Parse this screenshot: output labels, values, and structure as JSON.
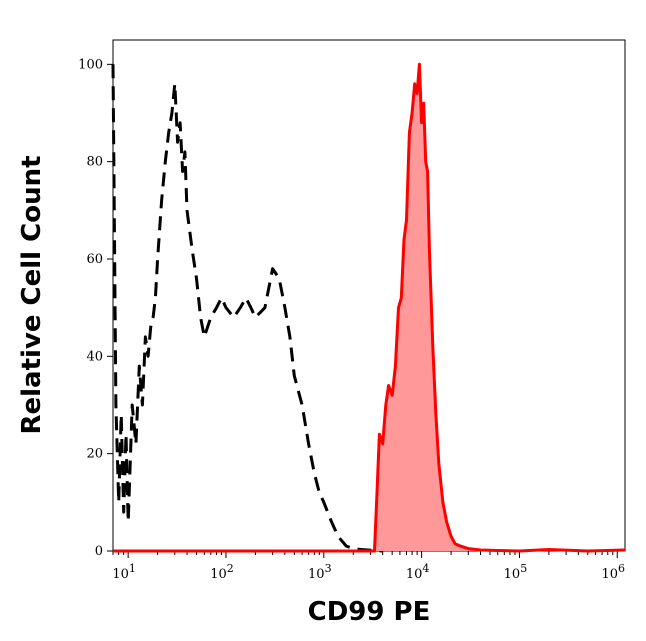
{
  "chart_data": {
    "type": "area",
    "title": "",
    "xlabel": "CD99 PE",
    "ylabel": "Relative Cell Count",
    "x_scale": "log",
    "xlim": [
      7,
      1200000
    ],
    "ylim": [
      0,
      105
    ],
    "x_ticks": [
      {
        "value": 10,
        "base": "10",
        "exp": "1"
      },
      {
        "value": 100,
        "base": "10",
        "exp": "2"
      },
      {
        "value": 1000,
        "base": "10",
        "exp": "3"
      },
      {
        "value": 10000,
        "base": "10",
        "exp": "4"
      },
      {
        "value": 100000,
        "base": "10",
        "exp": "5"
      },
      {
        "value": 1000000,
        "base": "10",
        "exp": "6"
      }
    ],
    "y_ticks": [
      0,
      20,
      40,
      60,
      80,
      100
    ],
    "grid": false,
    "legend": "none",
    "series": [
      {
        "style": "dashed",
        "color": "#000000",
        "fill": "none",
        "x": [
          7,
          7.5,
          8,
          8.5,
          9,
          9.5,
          10,
          11,
          12,
          13,
          14,
          15,
          16,
          17,
          18,
          19,
          20,
          22,
          24,
          26,
          28,
          30,
          32,
          34,
          36,
          38,
          40,
          45,
          50,
          55,
          60,
          70,
          80,
          90,
          100,
          120,
          140,
          160,
          180,
          200,
          250,
          300,
          350,
          400,
          450,
          500,
          600,
          700,
          800,
          900,
          1000,
          1200,
          1400,
          1700,
          2000,
          2400,
          2800,
          3300,
          4000
        ],
        "y": [
          100,
          30,
          10,
          28,
          8,
          24,
          6,
          30,
          22,
          38,
          30,
          44,
          40,
          46,
          48,
          52,
          60,
          72,
          80,
          86,
          90,
          96,
          84,
          88,
          78,
          82,
          70,
          62,
          56,
          48,
          44,
          48,
          50,
          52,
          50,
          48,
          50,
          52,
          50,
          48,
          50,
          58,
          56,
          50,
          44,
          36,
          30,
          22,
          16,
          12,
          10,
          6,
          3,
          1,
          0.5,
          0.3,
          0.2,
          0.1,
          0
        ]
      },
      {
        "style": "solid",
        "color": "#ff0000",
        "fill": "#ff9999",
        "x": [
          7,
          1000,
          2000,
          3000,
          3300,
          3500,
          3700,
          4000,
          4300,
          4600,
          5000,
          5400,
          5800,
          6200,
          6600,
          7000,
          7500,
          8000,
          8500,
          9000,
          9500,
          10000,
          10500,
          11000,
          11500,
          12000,
          13000,
          14000,
          15000,
          16500,
          18000,
          20000,
          22000,
          25000,
          30000,
          40000,
          60000,
          100000,
          200000,
          500000,
          1200000
        ],
        "y": [
          0,
          0,
          0,
          0,
          0,
          12,
          24,
          22,
          30,
          34,
          32,
          38,
          50,
          52,
          64,
          68,
          86,
          90,
          96,
          94,
          100,
          88,
          92,
          80,
          78,
          62,
          42,
          28,
          18,
          10,
          6,
          3,
          1.5,
          1,
          0.5,
          0.2,
          0.1,
          0,
          0.3,
          0,
          0.2
        ]
      }
    ]
  }
}
